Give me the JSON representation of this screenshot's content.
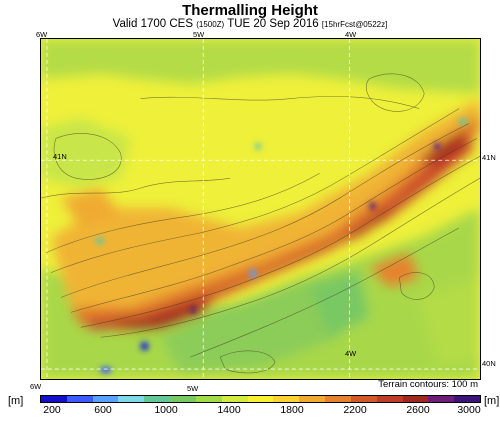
{
  "title": "Thermalling Height",
  "subtitle_main": "Valid 1700 CES",
  "subtitle_zone": "(1500Z)",
  "subtitle_date": "TUE 20 Sep 2016",
  "subtitle_fcst": "[15hrFcst@0522z]",
  "coords": {
    "top_left": "6W",
    "top_mid": "5W",
    "top_right": "4W",
    "left_mid": "41N",
    "right_mid": "41N",
    "bottom_left": "6W",
    "bottom_mid": "5W",
    "inner_bottom": "4W",
    "right_bottom": "40N"
  },
  "terrain_note": "Terrain contours: 100 m",
  "unit_label": "[m]",
  "colorbar": {
    "colors": [
      "#1410c8",
      "#3c5aff",
      "#5aa0ff",
      "#7ed8e8",
      "#64c896",
      "#78c864",
      "#a0dc46",
      "#d2eb3c",
      "#faf032",
      "#fad232",
      "#f0aa32",
      "#e6822d",
      "#d25a28",
      "#be3c28",
      "#a0281e",
      "#6e1e78",
      "#3c1478"
    ],
    "min": 200,
    "max": 3000,
    "ticks": [
      "200",
      "600",
      "1000",
      "1400",
      "1800",
      "2200",
      "2600",
      "3000"
    ]
  }
}
